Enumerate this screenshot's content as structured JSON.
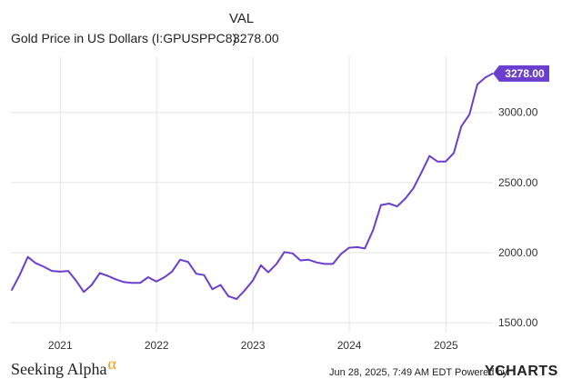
{
  "header": {
    "column_label": "VAL",
    "series_name": "Gold Price in US Dollars (I:GPUSPPC8)",
    "series_value": "3278.00"
  },
  "colors": {
    "line": "#6a3fcf",
    "grid": "#e6e6e6",
    "flag": "#6a3fcf"
  },
  "chart_data": {
    "type": "line",
    "x_tick_labels": [
      "2021",
      "2022",
      "2023",
      "2024",
      "2025"
    ],
    "y_tick_labels": [
      "3000.00",
      "2500.00",
      "2000.00",
      "1500.00"
    ],
    "ylim": [
      1430,
      3400
    ],
    "xlim": [
      "2020-06-28",
      "2025-06-28"
    ],
    "grid": true,
    "last_value_label": "3278.00",
    "series": [
      {
        "x": [
          "2020-06-30",
          "2020-07-31",
          "2020-08-31",
          "2020-09-30",
          "2020-10-31",
          "2020-11-30",
          "2020-12-31",
          "2021-01-31",
          "2021-02-28",
          "2021-03-31",
          "2021-04-30",
          "2021-05-31",
          "2021-06-30",
          "2021-07-31",
          "2021-08-31",
          "2021-09-30",
          "2021-10-31",
          "2021-11-30",
          "2021-12-31",
          "2022-01-31",
          "2022-02-28",
          "2022-03-31",
          "2022-04-30",
          "2022-05-31",
          "2022-06-30",
          "2022-07-31",
          "2022-08-31",
          "2022-09-30",
          "2022-10-31",
          "2022-11-30",
          "2022-12-31",
          "2023-01-31",
          "2023-02-28",
          "2023-03-31",
          "2023-04-30",
          "2023-05-31",
          "2023-06-30",
          "2023-07-31",
          "2023-08-31",
          "2023-09-30",
          "2023-10-31",
          "2023-11-30",
          "2023-12-31",
          "2024-01-31",
          "2024-02-29",
          "2024-03-31",
          "2024-04-30",
          "2024-05-31",
          "2024-06-30",
          "2024-07-31",
          "2024-08-31",
          "2024-09-30",
          "2024-10-31",
          "2024-11-30",
          "2024-12-31",
          "2025-01-31",
          "2025-02-28",
          "2025-03-31",
          "2025-04-30",
          "2025-05-31",
          "2025-06-28"
        ],
        "y": [
          1730,
          1840,
          1970,
          1925,
          1900,
          1870,
          1865,
          1870,
          1805,
          1720,
          1770,
          1855,
          1835,
          1810,
          1790,
          1785,
          1785,
          1825,
          1795,
          1825,
          1865,
          1950,
          1935,
          1850,
          1840,
          1740,
          1770,
          1690,
          1670,
          1730,
          1800,
          1910,
          1860,
          1920,
          2005,
          1995,
          1945,
          1950,
          1930,
          1920,
          1920,
          1990,
          2035,
          2040,
          2030,
          2160,
          2340,
          2350,
          2330,
          2385,
          2460,
          2570,
          2690,
          2650,
          2650,
          2710,
          2900,
          2985,
          3200,
          3250,
          3278
        ]
      }
    ]
  },
  "footer": {
    "brand": "Seeking Alpha",
    "brand_mark": "α",
    "date": "Jun 28, 2025, 7:49 AM EDT  Powered by",
    "logo": "YCHARTS"
  }
}
